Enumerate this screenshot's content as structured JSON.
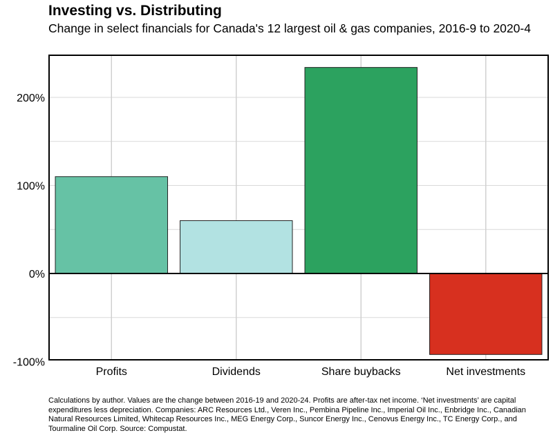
{
  "title": "Investing vs. Distributing",
  "subtitle": "Change in select financials for Canada's 12 largest oil & gas companies, 2016-9 to 2020-4",
  "caption": "Calculations by author. Values are the change between 2016-19 and 2020-24. Profits are after-tax net income. ‘Net investments’ are capital expenditures less depreciation. Companies: ARC Resources Ltd., Veren Inc., Pembina Pipeline Inc., Imperial Oil Inc., Enbridge Inc., Canadian Natural Resources Limited, Whitecap Resources Inc., MEG Energy Corp., Suncor Energy Inc., Cenovus Energy Inc., TC Energy Corp., and Tourmaline Oil Corp. Source: Compustat.",
  "chart_data": {
    "type": "bar",
    "title": "Investing vs. Distributing",
    "subtitle": "Change in select financials for Canada's 12 largest oil & gas companies, 2016-9 to 2020-4",
    "categories": [
      "Profits",
      "Dividends",
      "Share buybacks",
      "Net investments"
    ],
    "values": [
      110,
      60,
      234,
      -92
    ],
    "colors": [
      "#66c2a5",
      "#b2e2e2",
      "#2ca25f",
      "#d7301f"
    ],
    "unit": "%",
    "ylim": [
      -100,
      245
    ],
    "yticks": [
      -100,
      0,
      100,
      200
    ],
    "ytick_labels": [
      "-100%",
      "0%",
      "100%",
      "200%"
    ],
    "grid": true,
    "legend": "none"
  }
}
